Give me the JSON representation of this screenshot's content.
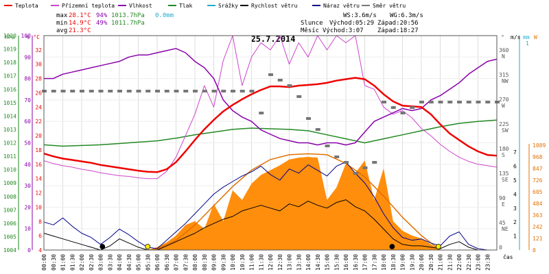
{
  "legend": [
    {
      "label": "Teplota",
      "color": "#ee0000"
    },
    {
      "label": "Přízemní teplota",
      "color": "#cc44cc"
    },
    {
      "label": "Vlhkost",
      "color": "#8800aa"
    },
    {
      "label": "Tlak",
      "color": "#228822"
    },
    {
      "label": "Srážky",
      "color": "#22aacc"
    },
    {
      "label": "Rychlost větru",
      "color": "#000000"
    },
    {
      "label": "Náraz větru",
      "color": "#000088"
    },
    {
      "label": "Směr větru",
      "color": "#777777"
    }
  ],
  "stats": {
    "max": {
      "label": "max",
      "temp": "28.1°C",
      "hum": "94%",
      "press": "1013.7hPa",
      "rain": "0.0mm"
    },
    "min": {
      "label": "min",
      "temp": "14.9°C",
      "hum": "49%",
      "press": "1011.7hPa"
    },
    "avg": {
      "label": "avg",
      "temp": "21.3°C"
    }
  },
  "wind_info": {
    "ws": "WS:3.6m/s",
    "wg": "WG:6.3m/s"
  },
  "sun": {
    "label": "Slunce",
    "rise": "Východ:05:29",
    "set": "Západ:20:56"
  },
  "moon": {
    "label": "Měsíc",
    "rise": "Východ:3:07",
    "set": "Západ:18:27"
  },
  "title": "25.7.2014",
  "colors": {
    "temp": "#ee0000",
    "ground": "#cc44cc",
    "hum": "#8800aa",
    "press": "#228822",
    "rain": "#22aacc",
    "wind": "#000000",
    "gust": "#000088",
    "dir": "#777777",
    "solar": "#ff8800",
    "solar_max": "#e07000"
  },
  "chart_data": {
    "type": "line",
    "title": "25.7.2014",
    "x_label": "čas",
    "x_ticks": [
      "00:00",
      "00:30",
      "01:00",
      "01:30",
      "02:00",
      "02:30",
      "03:00",
      "03:30",
      "04:00",
      "04:30",
      "05:00",
      "05:30",
      "06:00",
      "06:30",
      "07:00",
      "07:30",
      "08:00",
      "08:30",
      "09:00",
      "09:30",
      "10:00",
      "10:30",
      "11:00",
      "11:30",
      "12:00",
      "12:30",
      "13:00",
      "13:30",
      "14:00",
      "14:30",
      "15:00",
      "15:30",
      "16:00",
      "16:30",
      "17:00",
      "17:30",
      "18:00",
      "18:30",
      "19:00",
      "19:30",
      "20:00",
      "20:30",
      "21:00",
      "21:30",
      "22:00",
      "22:30",
      "23:00",
      "23:30"
    ],
    "x_range_h": [
      0,
      24
    ],
    "axes": {
      "hpa": {
        "unit": "hPa",
        "range": [
          1004,
          1020
        ],
        "ticks": [
          "1004",
          "1005",
          "1006",
          "1007",
          "1008",
          "1009",
          "1010",
          "1011",
          "1012",
          "1013",
          "1014",
          "1015",
          "1016",
          "1017",
          "1018",
          "1019",
          "1020"
        ]
      },
      "pct": {
        "unit": "%",
        "range": [
          0,
          100
        ],
        "ticks": [
          "0",
          "10",
          "20",
          "30",
          "40",
          "50",
          "60",
          "70",
          "80",
          "90",
          "100"
        ]
      },
      "temp": {
        "unit": "°C",
        "range": [
          4,
          34
        ],
        "ticks": [
          "4",
          "6",
          "8",
          "10",
          "12",
          "14",
          "16",
          "18",
          "20",
          "22",
          "24",
          "26",
          "28",
          "30",
          "32"
        ]
      },
      "dir": {
        "unit": "°",
        "ticks": [
          {
            "v": "360",
            "d": "N"
          },
          {
            "v": "315",
            "d": "NW"
          },
          {
            "v": "270",
            "d": "W"
          },
          {
            "v": "225",
            "d": "SW"
          },
          {
            "v": "180",
            "d": "S"
          },
          {
            "v": "135",
            "d": "SE"
          },
          {
            "v": "90",
            "d": "E"
          },
          {
            "v": "45",
            "d": "NE"
          },
          {
            "v": "0",
            "d": ""
          }
        ]
      },
      "ms": {
        "unit": "m/s",
        "range": [
          0,
          7
        ],
        "ticks": [
          "1",
          "2",
          "3",
          "4",
          "5",
          "6",
          "7"
        ]
      },
      "mm": {
        "unit": "mm",
        "top_label": "1"
      },
      "w": {
        "unit": "W",
        "range": [
          0,
          1089
        ],
        "ticks": [
          "0",
          "121",
          "242",
          "363",
          "484",
          "605",
          "726",
          "847",
          "968",
          "1089"
        ]
      }
    },
    "series": [
      {
        "name": "Teplota",
        "key": "temp",
        "axis": "temp",
        "x": [
          0,
          0.5,
          1,
          1.5,
          2,
          2.5,
          3,
          3.5,
          4,
          4.5,
          5,
          5.5,
          6,
          6.5,
          7,
          7.5,
          8,
          8.5,
          9,
          9.5,
          10,
          10.5,
          11,
          11.5,
          12,
          12.5,
          13,
          13.5,
          14,
          14.5,
          15,
          15.5,
          16,
          16.5,
          17,
          17.5,
          18,
          18.5,
          19,
          19.5,
          20,
          20.5,
          21,
          21.5,
          22,
          22.5,
          23,
          23.5,
          24
        ],
        "y": [
          17.5,
          17.1,
          16.8,
          16.6,
          16.4,
          16.2,
          15.9,
          15.7,
          15.5,
          15.3,
          15.1,
          14.95,
          14.9,
          15.3,
          16.3,
          17.8,
          19.4,
          20.9,
          22.2,
          23.4,
          24.3,
          25.1,
          25.8,
          26.4,
          26.9,
          26.9,
          26.8,
          27.0,
          27.1,
          27.2,
          27.4,
          27.7,
          27.9,
          28.1,
          27.9,
          27.0,
          25.8,
          24.8,
          24.2,
          24.1,
          24.0,
          23.0,
          21.6,
          20.3,
          19.4,
          18.5,
          17.8,
          17.3,
          17.2
        ]
      },
      {
        "name": "Přízemní teplota",
        "key": "ground",
        "axis": "temp",
        "x": [
          0,
          0.5,
          1,
          1.5,
          2,
          2.5,
          3,
          3.5,
          4,
          4.5,
          5,
          5.5,
          6,
          6.5,
          7,
          7.5,
          8,
          8.5,
          9,
          9.5,
          10,
          10.5,
          11,
          11.5,
          12,
          12.5,
          13,
          13.5,
          14,
          14.5,
          15,
          15.5,
          16,
          16.5,
          17,
          17.5,
          18,
          18.5,
          19,
          19.5,
          20,
          20.5,
          21,
          21.5,
          22,
          22.5,
          23,
          23.5,
          24
        ],
        "y": [
          16.5,
          16.1,
          15.8,
          15.6,
          15.3,
          15.1,
          14.8,
          14.6,
          14.4,
          14.3,
          14.1,
          14.0,
          14.0,
          15.0,
          17.0,
          20.0,
          23.0,
          27.0,
          24.0,
          30.5,
          34.0,
          27.0,
          31.0,
          33.0,
          32.0,
          34.0,
          30.0,
          33.0,
          31.0,
          34.0,
          32.0,
          34.0,
          33.0,
          34.0,
          27.0,
          26.5,
          24.0,
          23.0,
          23.5,
          22.5,
          21.0,
          20.0,
          18.8,
          17.8,
          17.0,
          16.4,
          16.0,
          15.8,
          15.6
        ]
      },
      {
        "name": "Vlhkost",
        "key": "hum",
        "axis": "pct",
        "x": [
          0,
          0.5,
          1,
          1.5,
          2,
          2.5,
          3,
          3.5,
          4,
          4.5,
          5,
          5.5,
          6,
          6.5,
          7,
          7.5,
          8,
          8.5,
          9,
          9.5,
          10,
          10.5,
          11,
          11.5,
          12,
          12.5,
          13,
          13.5,
          14,
          14.5,
          15,
          15.5,
          16,
          16.5,
          17,
          17.5,
          18,
          18.5,
          19,
          19.5,
          20,
          20.5,
          21,
          21.5,
          22,
          22.5,
          23,
          23.5,
          24
        ],
        "y": [
          80,
          80,
          82,
          83,
          84,
          85,
          86,
          87,
          88,
          90,
          91,
          91,
          92,
          93,
          94,
          92,
          88,
          85,
          80,
          70,
          65,
          62,
          60,
          56,
          54,
          52,
          51,
          50,
          50,
          49,
          50,
          50,
          49,
          50,
          55,
          60,
          62,
          64,
          66,
          65,
          66,
          70,
          72,
          75,
          78,
          82,
          85,
          88,
          89
        ]
      },
      {
        "name": "Tlak",
        "key": "press",
        "axis": "hpa",
        "x": [
          0,
          1,
          2,
          3,
          4,
          5,
          6,
          7,
          8,
          9,
          10,
          11,
          12,
          13,
          14,
          15,
          16,
          17,
          18,
          19,
          20,
          21,
          22,
          23,
          24
        ],
        "y": [
          1011.85,
          1011.75,
          1011.8,
          1011.85,
          1011.95,
          1012.05,
          1012.15,
          1012.35,
          1012.6,
          1012.8,
          1013.0,
          1013.1,
          1013.05,
          1013.0,
          1012.9,
          1012.6,
          1012.3,
          1012.0,
          1012.3,
          1012.6,
          1012.9,
          1013.2,
          1013.45,
          1013.6,
          1013.7
        ]
      },
      {
        "name": "Rychlost větru",
        "key": "wind",
        "axis": "ms",
        "x": [
          0,
          0.5,
          1,
          1.5,
          2,
          2.5,
          3,
          3.5,
          4,
          4.5,
          5,
          5.5,
          6,
          6.5,
          7,
          7.5,
          8,
          8.5,
          9,
          9.5,
          10,
          10.5,
          11,
          11.5,
          12,
          12.5,
          13,
          13.5,
          14,
          14.5,
          15,
          15.5,
          16,
          16.5,
          17,
          17.5,
          18,
          18.5,
          19,
          19.5,
          20,
          20.5,
          21,
          21.5,
          22,
          22.5,
          23,
          23.5,
          24
        ],
        "y": [
          1.2,
          1.0,
          0.8,
          0.6,
          0.4,
          0.2,
          0,
          0.3,
          0.8,
          0.5,
          0.2,
          0,
          0,
          0.3,
          0.6,
          0.9,
          1.2,
          1.6,
          1.9,
          2.2,
          2.4,
          2.8,
          3.0,
          3.2,
          3.0,
          2.8,
          3.3,
          3.1,
          3.5,
          3.2,
          3.0,
          3.4,
          3.6,
          3.1,
          2.8,
          2.2,
          1.5,
          0.8,
          0.4,
          0.3,
          0.3,
          0.2,
          0.1,
          0.4,
          0.6,
          0.2,
          0,
          0,
          0
        ]
      },
      {
        "name": "Náraz větru",
        "key": "gust",
        "axis": "ms",
        "x": [
          0,
          0.5,
          1,
          1.5,
          2,
          2.5,
          3,
          3.5,
          4,
          4.5,
          5,
          5.5,
          6,
          6.5,
          7,
          7.5,
          8,
          8.5,
          9,
          9.5,
          10,
          10.5,
          11,
          11.5,
          12,
          12.5,
          13,
          13.5,
          14,
          14.5,
          15,
          15.5,
          16,
          16.5,
          17,
          17.5,
          18,
          18.5,
          19,
          19.5,
          20,
          20.5,
          21,
          21.5,
          22,
          22.5,
          23,
          23.5,
          24
        ],
        "y": [
          2.0,
          1.8,
          2.3,
          1.7,
          1.2,
          0.9,
          0.4,
          0.9,
          1.5,
          1.1,
          0.6,
          0.2,
          0.1,
          0.7,
          1.3,
          1.9,
          2.6,
          3.3,
          4.0,
          4.5,
          4.9,
          5.3,
          5.6,
          6.0,
          5.4,
          5.0,
          5.8,
          5.5,
          6.1,
          5.7,
          5.3,
          6.0,
          6.3,
          5.5,
          4.8,
          3.8,
          2.6,
          1.6,
          0.9,
          0.7,
          0.8,
          0.5,
          0.3,
          1.0,
          1.3,
          0.4,
          0.1,
          0,
          0
        ]
      }
    ],
    "wind_direction_deg": {
      "x": [
        0,
        0.5,
        1,
        1.5,
        2,
        2.5,
        3,
        3.5,
        4,
        4.5,
        5,
        5.5,
        6,
        6.5,
        7,
        7.5,
        8,
        8.5,
        9,
        9.5,
        10,
        10.5,
        11,
        11.5,
        12,
        12.5,
        13,
        13.5,
        14,
        14.5,
        15,
        15.5,
        16,
        16.5,
        17,
        17.5,
        18,
        18.5,
        19,
        19.5,
        20,
        20.5,
        21,
        21.5,
        22,
        22.5,
        23,
        23.5,
        24
      ],
      "y": [
        290,
        290,
        290,
        290,
        290,
        290,
        290,
        290,
        290,
        290,
        290,
        290,
        290,
        290,
        290,
        290,
        290,
        290,
        290,
        290,
        290,
        290,
        290,
        250,
        320,
        310,
        300,
        280,
        240,
        220,
        190,
        170,
        160,
        140,
        150,
        160,
        270,
        260,
        250,
        260,
        270,
        270,
        270,
        270,
        270,
        270,
        270,
        270,
        270
      ]
    },
    "solar_radiation_w": {
      "x": [
        5.5,
        6,
        6.5,
        7,
        7.5,
        8,
        8.5,
        9,
        9.5,
        10,
        10.5,
        11,
        11.5,
        12,
        12.5,
        13,
        13.5,
        14,
        14.5,
        15,
        15.5,
        16,
        16.5,
        17,
        17.5,
        18,
        18.5,
        19,
        19.5,
        20,
        20.5,
        21
      ],
      "y": [
        0,
        30,
        80,
        150,
        260,
        300,
        220,
        480,
        300,
        620,
        520,
        690,
        780,
        830,
        880,
        940,
        960,
        968,
        960,
        520,
        650,
        900,
        800,
        930,
        520,
        850,
        300,
        200,
        150,
        120,
        60,
        0
      ]
    },
    "solar_max_w": {
      "x": [
        5.5,
        6,
        7,
        8,
        9,
        10,
        11,
        12,
        13,
        14,
        15,
        16,
        17,
        18,
        19,
        20,
        21
      ],
      "y": [
        0,
        10,
        100,
        260,
        460,
        660,
        830,
        940,
        990,
        1000,
        990,
        900,
        760,
        560,
        340,
        150,
        0
      ]
    },
    "markers": [
      {
        "x": 3.1,
        "type": "moonrise",
        "color": "#000000"
      },
      {
        "x": 5.5,
        "type": "sunrise",
        "color": "#ffee00"
      },
      {
        "x": 18.45,
        "type": "moonset",
        "color": "#000000"
      },
      {
        "x": 20.9,
        "type": "sunset",
        "color": "#ffee00"
      }
    ]
  }
}
